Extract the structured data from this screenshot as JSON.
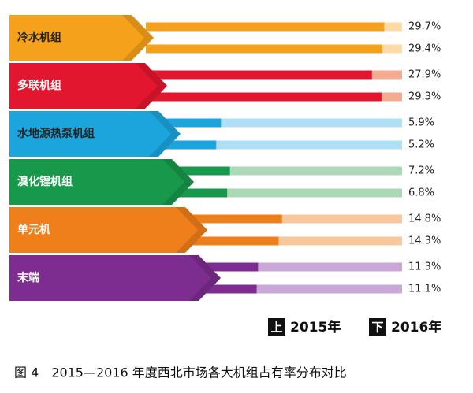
{
  "chart_data": {
    "type": "bar",
    "orientation": "horizontal",
    "title": "图 4　2015—2016 年度西北市场各大机组占有率分布对比",
    "categories": [
      "冷水机组",
      "多联机组",
      "水地源热泵机组",
      "溴化锂机组",
      "单元机",
      "末端"
    ],
    "category_colors": [
      "#f5a11c",
      "#e2162e",
      "#1ba5dc",
      "#17984a",
      "#ef7f1a",
      "#7c2d8f"
    ],
    "track_colors": [
      "#fcdba6",
      "#f4ab90",
      "#ade0f4",
      "#acd9b5",
      "#f8c89c",
      "#c9a8d8"
    ],
    "legend_markers": [
      "上",
      "下"
    ],
    "series": [
      {
        "name": "2015年",
        "values": [
          29.7,
          27.9,
          5.9,
          7.2,
          14.8,
          11.3
        ],
        "value_labels": [
          "29.7%",
          "27.9%",
          "5.9%",
          "7.2%",
          "14.8%",
          "11.3%"
        ]
      },
      {
        "name": "2016年",
        "values": [
          29.4,
          29.3,
          5.2,
          6.8,
          14.3,
          11.1
        ],
        "value_labels": [
          "29.4%",
          "29.3%",
          "5.2%",
          "6.8%",
          "14.3%",
          "11.1%"
        ]
      }
    ]
  }
}
